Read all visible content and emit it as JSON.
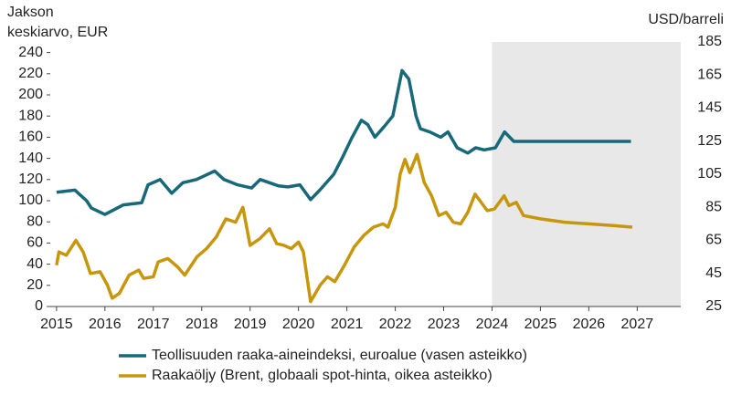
{
  "chart_data": {
    "type": "line",
    "ylabel": [
      "Jakson",
      "keskiarvo, EUR"
    ],
    "y2label": "USD/barreli",
    "xlim": [
      2014.87,
      2027.9
    ],
    "xticks": [
      2015,
      2016,
      2017,
      2018,
      2019,
      2020,
      2021,
      2022,
      2023,
      2024,
      2025,
      2026,
      2027
    ],
    "ylim": [
      0,
      250
    ],
    "yticks": [
      0,
      20,
      40,
      60,
      80,
      100,
      120,
      140,
      160,
      180,
      200,
      220,
      240
    ],
    "y2lim": [
      25,
      185
    ],
    "y2ticks": [
      25,
      45,
      65,
      85,
      105,
      125,
      145,
      165,
      185
    ],
    "shade_from": 2024,
    "legend": "bottom",
    "series": [
      {
        "name": "Teollisuuden raaka-aineindeksi, euroalue (vasen asteikko)",
        "color": "#17697a",
        "x": [
          2015.0,
          2015.38,
          2015.62,
          2015.72,
          2016.0,
          2016.38,
          2016.76,
          2016.89,
          2017.14,
          2017.38,
          2017.61,
          2017.89,
          2018.27,
          2018.46,
          2018.74,
          2019.03,
          2019.21,
          2019.4,
          2019.59,
          2019.78,
          2020.03,
          2020.25,
          2020.44,
          2020.73,
          2020.92,
          2021.11,
          2021.3,
          2021.43,
          2021.58,
          2021.77,
          2021.95,
          2022.14,
          2022.28,
          2022.43,
          2022.52,
          2022.71,
          2022.94,
          2023.09,
          2023.28,
          2023.5,
          2023.66,
          2023.84,
          2024.07,
          2024.26,
          2024.45,
          2024.7,
          2026.87
        ],
        "values": [
          108,
          110,
          100,
          93,
          87,
          96,
          98,
          115,
          120,
          107,
          117,
          120,
          128,
          120,
          115,
          112,
          120,
          117,
          114,
          113,
          115,
          101,
          110,
          125,
          142,
          160,
          176,
          172,
          160,
          170,
          180,
          223,
          215,
          180,
          168,
          165,
          160,
          165,
          150,
          145,
          150,
          148,
          150,
          165,
          156,
          156,
          156
        ]
      },
      {
        "name": "Raakaöljy (Brent, globaali spot-hinta, oikea asteikko)",
        "color": "#c8960c",
        "axis": "y2",
        "x": [
          2015.0,
          2015.05,
          2015.2,
          2015.4,
          2015.55,
          2015.7,
          2015.9,
          2016.05,
          2016.15,
          2016.3,
          2016.5,
          2016.7,
          2016.8,
          2017.0,
          2017.1,
          2017.3,
          2017.5,
          2017.65,
          2017.9,
          2018.1,
          2018.3,
          2018.5,
          2018.7,
          2018.85,
          2019.0,
          2019.2,
          2019.4,
          2019.55,
          2019.7,
          2019.85,
          2020.0,
          2020.1,
          2020.25,
          2020.45,
          2020.6,
          2020.75,
          2020.95,
          2021.15,
          2021.35,
          2021.55,
          2021.75,
          2021.85,
          2022.0,
          2022.1,
          2022.2,
          2022.3,
          2022.45,
          2022.6,
          2022.75,
          2022.9,
          2023.05,
          2023.2,
          2023.35,
          2023.5,
          2023.65,
          2023.75,
          2023.9,
          2024.05,
          2024.25,
          2024.35,
          2024.5,
          2024.65,
          2025.0,
          2025.5,
          2026.0,
          2026.5,
          2026.9
        ],
        "values": [
          50,
          58,
          56,
          65,
          58,
          45,
          46,
          38,
          30,
          33,
          44,
          47,
          42,
          43,
          52,
          54,
          49,
          44,
          55,
          60,
          67,
          78,
          76,
          85,
          62,
          66,
          72,
          63,
          62,
          60,
          64,
          58,
          28,
          38,
          43,
          40,
          50,
          61,
          68,
          73,
          75,
          73,
          85,
          105,
          114,
          106,
          117,
          100,
          92,
          80,
          82,
          76,
          75,
          82,
          93,
          89,
          83,
          84,
          92,
          86,
          88,
          80,
          78,
          76,
          75,
          74,
          73
        ]
      }
    ]
  }
}
